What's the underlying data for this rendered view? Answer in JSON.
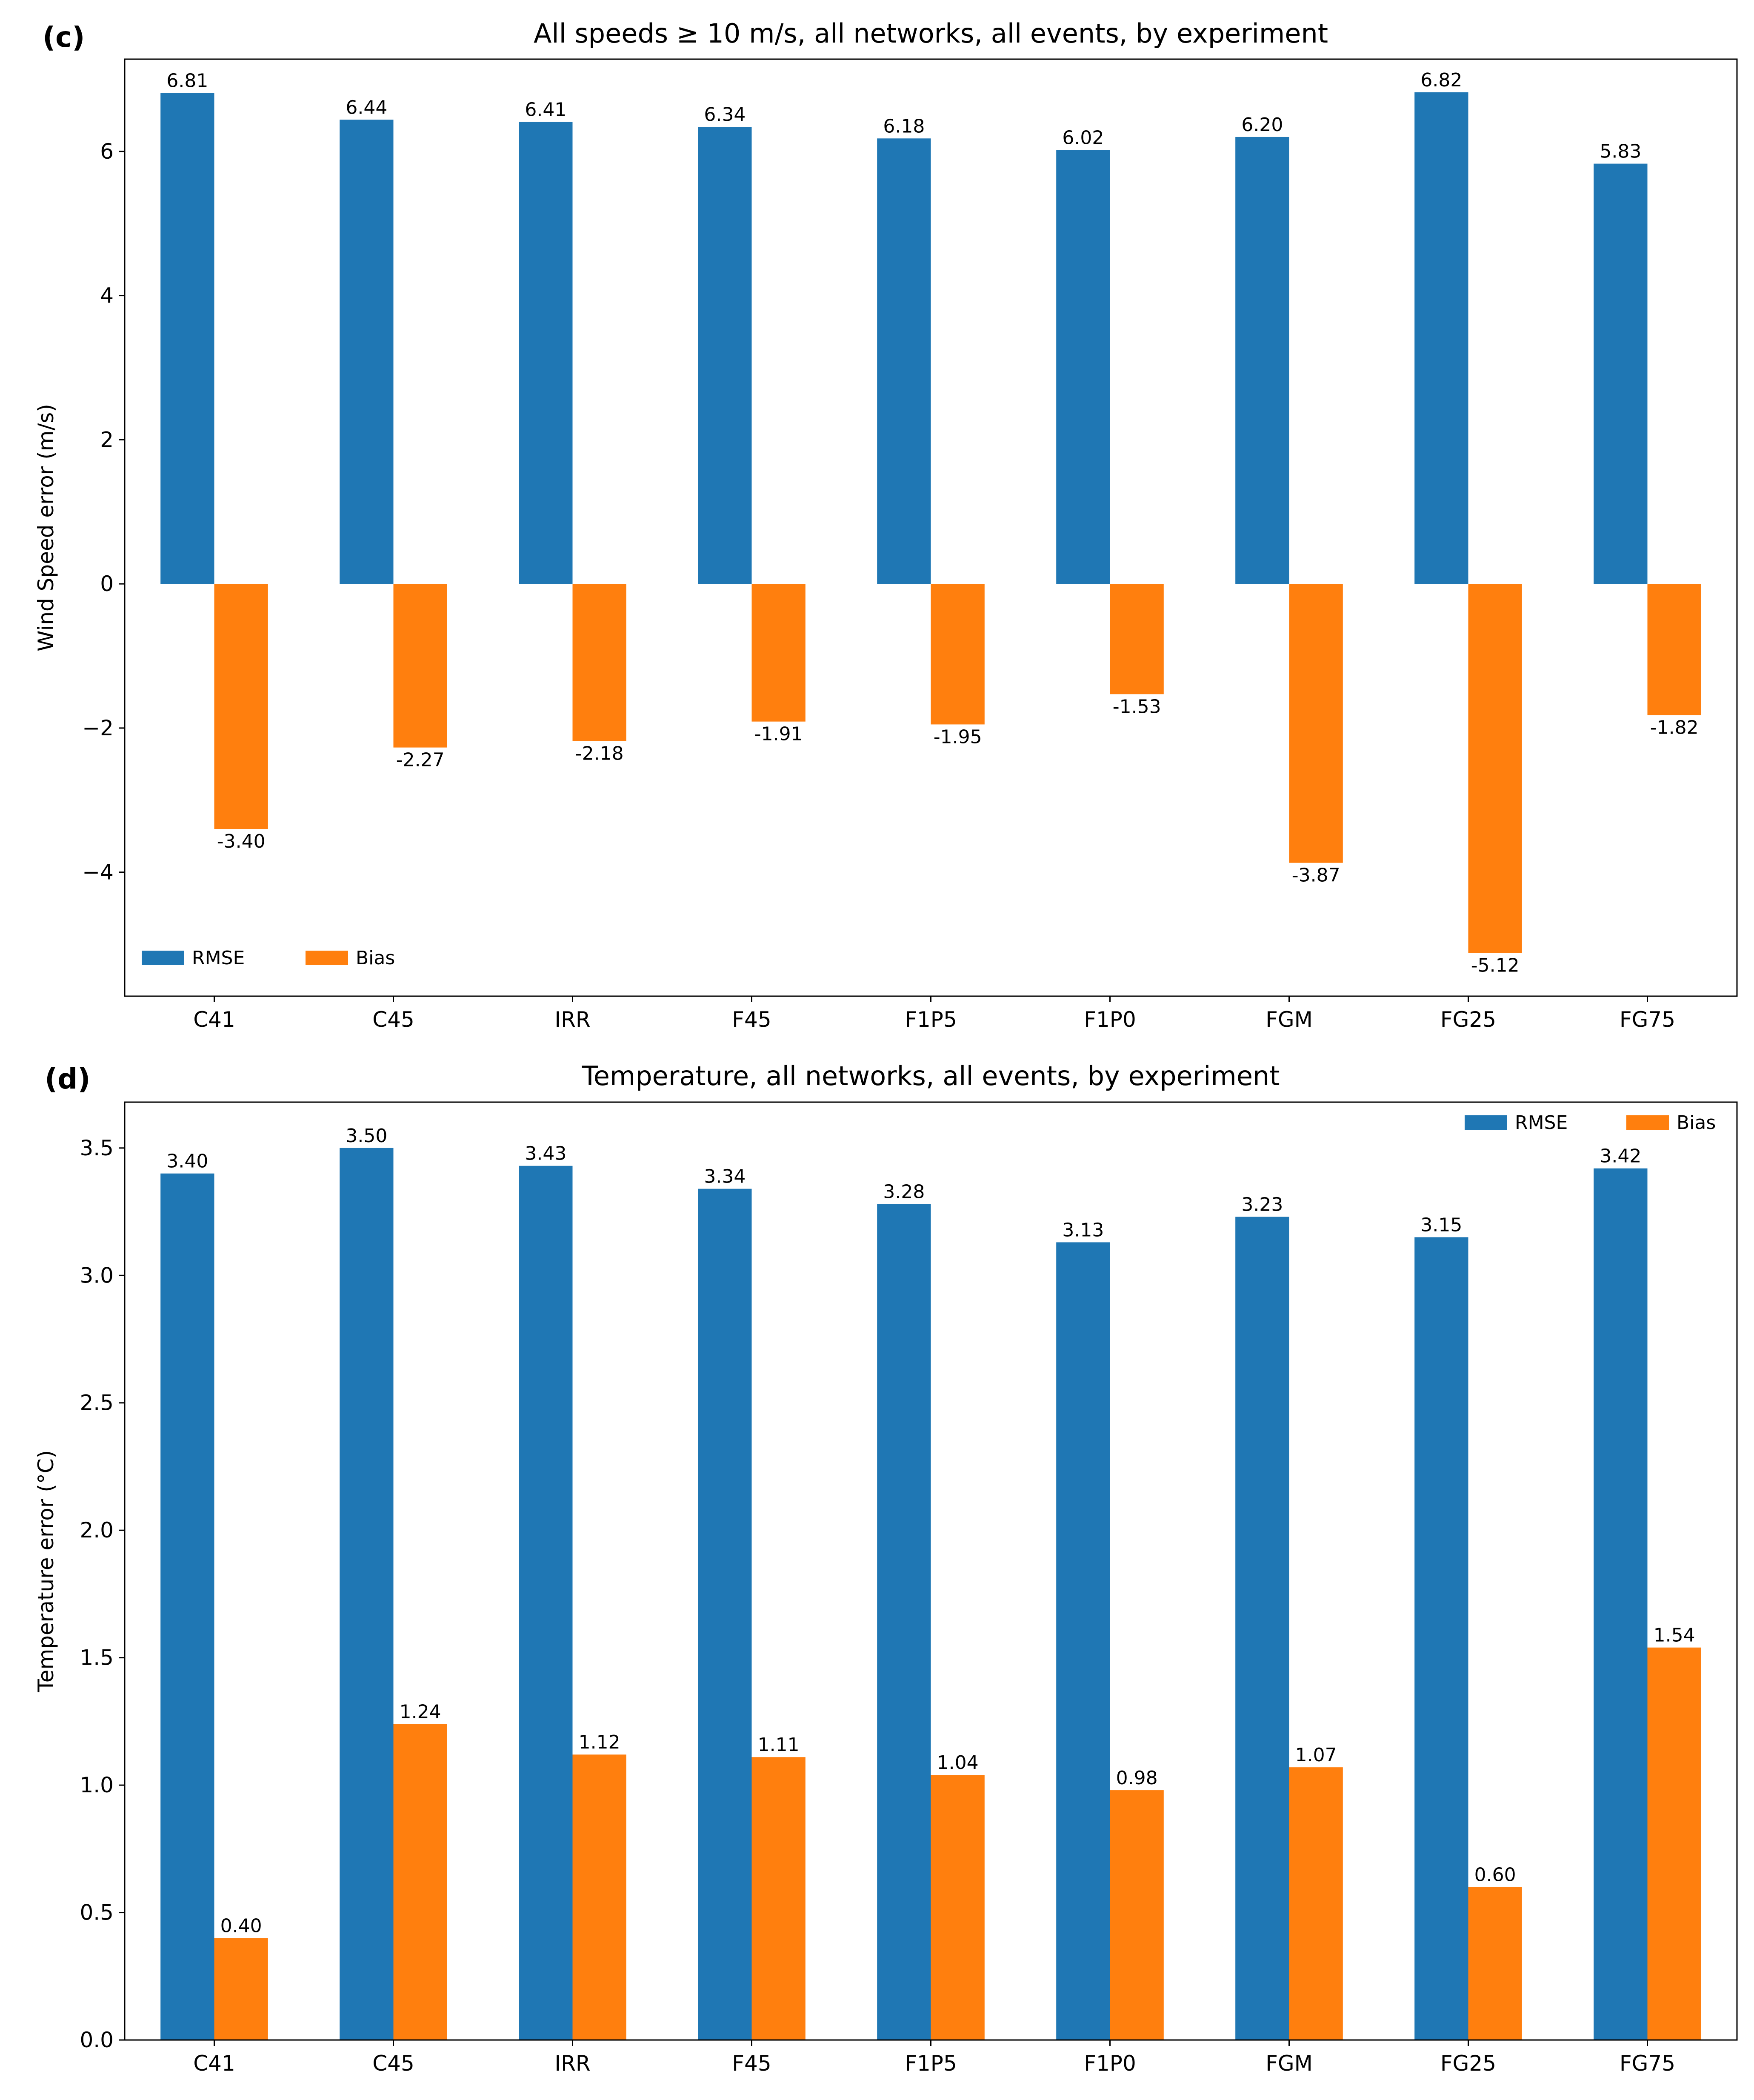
{
  "colors": {
    "rmse": "#1f77b4",
    "bias": "#ff7f0e"
  },
  "chart_data": [
    {
      "type": "bar",
      "panel_label": "(c)",
      "title": "All speeds ≥ 10 m/s, all networks, all events, by experiment",
      "xlabel": "",
      "ylabel": "Wind Speed error (m/s)",
      "categories": [
        "C41",
        "C45",
        "IRR",
        "F45",
        "F1P5",
        "F1P0",
        "FGM",
        "FG25",
        "FG75"
      ],
      "series": [
        {
          "name": "RMSE",
          "values": [
            6.81,
            6.44,
            6.41,
            6.34,
            6.18,
            6.02,
            6.2,
            6.82,
            5.83
          ]
        },
        {
          "name": "Bias",
          "values": [
            -3.4,
            -2.27,
            -2.18,
            -1.91,
            -1.95,
            -1.53,
            -3.87,
            -5.12,
            -1.82
          ]
        }
      ],
      "ylim": [
        -5.72,
        7.28
      ],
      "yticks": [
        -4,
        -2,
        0,
        2,
        4,
        6
      ],
      "legend": {
        "placement": "bottom-left",
        "labels": [
          "RMSE",
          "Bias"
        ]
      },
      "grid": false
    },
    {
      "type": "bar",
      "panel_label": "(d)",
      "title": "Temperature, all networks, all events, by experiment",
      "xlabel": "",
      "ylabel": "Temperature error (°C)",
      "categories": [
        "C41",
        "C45",
        "IRR",
        "F45",
        "F1P5",
        "F1P0",
        "FGM",
        "FG25",
        "FG75"
      ],
      "series": [
        {
          "name": "RMSE",
          "values": [
            3.4,
            3.5,
            3.43,
            3.34,
            3.28,
            3.13,
            3.23,
            3.15,
            3.42
          ]
        },
        {
          "name": "Bias",
          "values": [
            0.4,
            1.24,
            1.12,
            1.11,
            1.04,
            0.98,
            1.07,
            0.6,
            1.54
          ]
        }
      ],
      "ylim": [
        0,
        3.68
      ],
      "yticks": [
        0.0,
        0.5,
        1.0,
        1.5,
        2.0,
        2.5,
        3.0,
        3.5
      ],
      "legend": {
        "placement": "top-right",
        "labels": [
          "RMSE",
          "Bias"
        ]
      },
      "grid": false
    }
  ]
}
